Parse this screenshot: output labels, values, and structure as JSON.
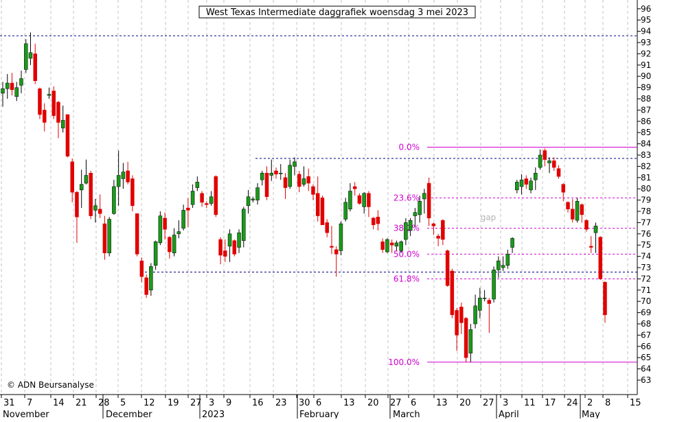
{
  "chart_data": {
    "type": "candlestick",
    "title": "West Texas Intermediate daggrafiek woensdag 3 mei 2023",
    "copyright": "© ADN Beursanalyse",
    "gap_label": "gap",
    "y_axis": {
      "min": 63,
      "max": 96,
      "step": 1,
      "position": "right"
    },
    "y_ticks": [
      63,
      64,
      65,
      66,
      67,
      68,
      69,
      70,
      71,
      72,
      73,
      74,
      75,
      76,
      77,
      78,
      79,
      80,
      81,
      82,
      83,
      84,
      85,
      86,
      87,
      88,
      89,
      90,
      91,
      92,
      93,
      94,
      95,
      96
    ],
    "x_day_ticks": [
      "31",
      "7",
      "14",
      "21",
      "28",
      "5",
      "12",
      "19",
      "27",
      "3",
      "9",
      "16",
      "23",
      "30",
      "6",
      "13",
      "20",
      "27",
      "6",
      "13",
      "20",
      "27",
      "3",
      "11",
      "17",
      "24",
      "2",
      "8",
      "15"
    ],
    "x_month_labels": [
      "November",
      "December",
      "2023",
      "February",
      "March",
      "April",
      "May"
    ],
    "grid": "vertical dashed",
    "colors": {
      "up": "#1a9a1a",
      "down": "#e00000",
      "fib": "#d000d0",
      "level": "#000080"
    },
    "horizontal_levels": [
      {
        "value": 93.6,
        "style": "dotted",
        "color": "#000080"
      },
      {
        "value": 82.7,
        "style": "dotted",
        "color": "#000080"
      },
      {
        "value": 72.6,
        "style": "dotted",
        "color": "#000080"
      }
    ],
    "fibonacci": [
      {
        "label": "0.0%",
        "value": 83.7
      },
      {
        "label": "23.6%",
        "value": 79.2
      },
      {
        "label": "38.2%",
        "value": 76.5
      },
      {
        "label": "50.0%",
        "value": 74.2
      },
      {
        "label": "61.8%",
        "value": 72.0
      },
      {
        "label": "100.0%",
        "value": 64.6
      }
    ],
    "candles": [
      {
        "o": 88.5,
        "h": 89.5,
        "l": 87.3,
        "c": 88.9
      },
      {
        "o": 88.9,
        "h": 90.2,
        "l": 88.0,
        "c": 89.4
      },
      {
        "o": 89.4,
        "h": 90.3,
        "l": 88.3,
        "c": 88.8
      },
      {
        "o": 88.2,
        "h": 89.5,
        "l": 87.8,
        "c": 89.0
      },
      {
        "o": 89.2,
        "h": 90.5,
        "l": 88.5,
        "c": 89.8
      },
      {
        "o": 90.6,
        "h": 93.3,
        "l": 90.3,
        "c": 92.9
      },
      {
        "o": 91.6,
        "h": 93.9,
        "l": 91.0,
        "c": 92.1
      },
      {
        "o": 92.0,
        "h": 92.9,
        "l": 89.3,
        "c": 89.6
      },
      {
        "o": 88.9,
        "h": 89.0,
        "l": 86.2,
        "c": 86.6
      },
      {
        "o": 87.0,
        "h": 87.6,
        "l": 85.1,
        "c": 85.9
      },
      {
        "o": 88.3,
        "h": 89.0,
        "l": 88.0,
        "c": 88.4
      },
      {
        "o": 88.7,
        "h": 89.1,
        "l": 86.2,
        "c": 86.5
      },
      {
        "o": 87.7,
        "h": 87.8,
        "l": 84.5,
        "c": 85.9
      },
      {
        "o": 85.4,
        "h": 87.4,
        "l": 85.0,
        "c": 86.1
      },
      {
        "o": 86.6,
        "h": 86.6,
        "l": 82.8,
        "c": 82.9
      },
      {
        "o": 82.4,
        "h": 82.7,
        "l": 78.8,
        "c": 79.7
      },
      {
        "o": 79.7,
        "h": 79.8,
        "l": 75.2,
        "c": 77.5
      },
      {
        "o": 79.9,
        "h": 81.7,
        "l": 78.3,
        "c": 80.4
      },
      {
        "o": 80.5,
        "h": 82.6,
        "l": 80.4,
        "c": 81.2
      },
      {
        "o": 81.4,
        "h": 81.6,
        "l": 77.3,
        "c": 77.6
      },
      {
        "o": 78.1,
        "h": 79.1,
        "l": 77.0,
        "c": 78.5
      },
      {
        "o": 78.2,
        "h": 79.5,
        "l": 77.4,
        "c": 77.8
      },
      {
        "o": 76.9,
        "h": 77.6,
        "l": 73.7,
        "c": 74.3
      },
      {
        "o": 74.3,
        "h": 77.5,
        "l": 74.0,
        "c": 77.3
      },
      {
        "o": 77.8,
        "h": 80.8,
        "l": 77.7,
        "c": 80.2
      },
      {
        "o": 80.2,
        "h": 83.4,
        "l": 78.5,
        "c": 81.2
      },
      {
        "o": 80.9,
        "h": 82.3,
        "l": 80.0,
        "c": 81.5
      },
      {
        "o": 81.6,
        "h": 82.4,
        "l": 80.4,
        "c": 80.6
      },
      {
        "o": 80.9,
        "h": 81.2,
        "l": 78.0,
        "c": 78.5
      },
      {
        "o": 77.8,
        "h": 77.8,
        "l": 74.0,
        "c": 74.2
      },
      {
        "o": 73.6,
        "h": 73.9,
        "l": 71.7,
        "c": 72.2
      },
      {
        "o": 72.1,
        "h": 72.4,
        "l": 70.3,
        "c": 70.6
      },
      {
        "o": 71.0,
        "h": 73.4,
        "l": 70.5,
        "c": 73.1
      },
      {
        "o": 73.2,
        "h": 75.4,
        "l": 72.8,
        "c": 75.3
      },
      {
        "o": 75.2,
        "h": 78.0,
        "l": 75.0,
        "c": 77.6
      },
      {
        "o": 77.4,
        "h": 77.9,
        "l": 75.5,
        "c": 76.4
      },
      {
        "o": 75.7,
        "h": 75.8,
        "l": 73.8,
        "c": 74.4
      },
      {
        "o": 74.3,
        "h": 76.5,
        "l": 74.0,
        "c": 75.9
      },
      {
        "o": 76.0,
        "h": 77.2,
        "l": 75.6,
        "c": 76.2
      },
      {
        "o": 76.5,
        "h": 78.6,
        "l": 76.3,
        "c": 78.1
      },
      {
        "o": 78.3,
        "h": 79.2,
        "l": 76.6,
        "c": 78.1
      },
      {
        "o": 78.6,
        "h": 80.4,
        "l": 78.3,
        "c": 79.8
      },
      {
        "o": 80.1,
        "h": 81.1,
        "l": 79.8,
        "c": 80.6
      },
      {
        "o": 79.6,
        "h": 79.8,
        "l": 78.4,
        "c": 78.8
      },
      {
        "o": 78.7,
        "h": 78.9,
        "l": 78.3,
        "c": 78.6
      },
      {
        "o": 78.7,
        "h": 79.8,
        "l": 78.5,
        "c": 79.3
      },
      {
        "o": 81.1,
        "h": 81.2,
        "l": 77.5,
        "c": 77.7
      },
      {
        "o": 75.5,
        "h": 75.7,
        "l": 73.3,
        "c": 74.1
      },
      {
        "o": 74.5,
        "h": 75.5,
        "l": 73.5,
        "c": 74.0
      },
      {
        "o": 74.9,
        "h": 76.4,
        "l": 73.5,
        "c": 76.0
      },
      {
        "o": 75.4,
        "h": 75.5,
        "l": 74.0,
        "c": 74.2
      },
      {
        "o": 74.8,
        "h": 76.4,
        "l": 74.3,
        "c": 76.1
      },
      {
        "o": 75.4,
        "h": 78.4,
        "l": 74.8,
        "c": 78.2
      },
      {
        "o": 78.5,
        "h": 79.9,
        "l": 77.8,
        "c": 79.3
      },
      {
        "o": 79.0,
        "h": 79.3,
        "l": 78.8,
        "c": 79.1
      },
      {
        "o": 79.0,
        "h": 80.5,
        "l": 78.6,
        "c": 80.1
      },
      {
        "o": 80.8,
        "h": 81.6,
        "l": 80.3,
        "c": 81.4
      },
      {
        "o": 81.4,
        "h": 82.0,
        "l": 79.0,
        "c": 79.3
      },
      {
        "o": 81.2,
        "h": 82.6,
        "l": 80.7,
        "c": 81.4
      },
      {
        "o": 81.6,
        "h": 81.9,
        "l": 80.9,
        "c": 81.3
      },
      {
        "o": 81.4,
        "h": 82.2,
        "l": 80.8,
        "c": 81.4
      },
      {
        "o": 81.0,
        "h": 81.4,
        "l": 79.1,
        "c": 80.1
      },
      {
        "o": 80.2,
        "h": 82.6,
        "l": 80.0,
        "c": 82.1
      },
      {
        "o": 82.0,
        "h": 82.8,
        "l": 81.2,
        "c": 82.4
      },
      {
        "o": 81.3,
        "h": 81.6,
        "l": 79.7,
        "c": 80.2
      },
      {
        "o": 80.4,
        "h": 82.0,
        "l": 80.2,
        "c": 80.9
      },
      {
        "o": 81.1,
        "h": 81.8,
        "l": 79.8,
        "c": 80.5
      },
      {
        "o": 80.2,
        "h": 80.4,
        "l": 79.0,
        "c": 79.5
      },
      {
        "o": 79.6,
        "h": 81.1,
        "l": 77.1,
        "c": 77.6
      },
      {
        "o": 79.2,
        "h": 79.4,
        "l": 76.8,
        "c": 76.8
      },
      {
        "o": 77.0,
        "h": 77.3,
        "l": 75.7,
        "c": 76.1
      },
      {
        "o": 74.9,
        "h": 76.7,
        "l": 74.2,
        "c": 74.8
      },
      {
        "o": 74.6,
        "h": 74.9,
        "l": 72.2,
        "c": 74.2
      },
      {
        "o": 74.5,
        "h": 77.1,
        "l": 74.1,
        "c": 76.9
      },
      {
        "o": 77.3,
        "h": 79.2,
        "l": 77.1,
        "c": 78.8
      },
      {
        "o": 78.2,
        "h": 80.5,
        "l": 78.0,
        "c": 79.8
      },
      {
        "o": 80.2,
        "h": 80.6,
        "l": 79.4,
        "c": 80.0
      },
      {
        "o": 79.4,
        "h": 79.6,
        "l": 78.6,
        "c": 78.7
      },
      {
        "o": 78.4,
        "h": 79.7,
        "l": 77.8,
        "c": 79.6
      },
      {
        "o": 79.6,
        "h": 79.8,
        "l": 77.5,
        "c": 78.4
      },
      {
        "o": 77.4,
        "h": 77.5,
        "l": 76.4,
        "c": 76.8
      },
      {
        "o": 77.5,
        "h": 78.1,
        "l": 76.3,
        "c": 76.9
      },
      {
        "o": 75.3,
        "h": 75.6,
        "l": 74.3,
        "c": 74.6
      },
      {
        "o": 74.4,
        "h": 75.6,
        "l": 74.3,
        "c": 75.5
      },
      {
        "o": 75.2,
        "h": 75.5,
        "l": 74.3,
        "c": 75.0
      },
      {
        "o": 74.9,
        "h": 75.4,
        "l": 74.5,
        "c": 75.2
      },
      {
        "o": 74.5,
        "h": 75.4,
        "l": 74.3,
        "c": 75.3
      },
      {
        "o": 75.5,
        "h": 77.4,
        "l": 75.0,
        "c": 77.0
      },
      {
        "o": 76.3,
        "h": 77.4,
        "l": 75.8,
        "c": 77.2
      },
      {
        "o": 77.6,
        "h": 78.3,
        "l": 76.6,
        "c": 77.9
      },
      {
        "o": 77.7,
        "h": 79.4,
        "l": 77.0,
        "c": 78.9
      },
      {
        "o": 79.1,
        "h": 80.0,
        "l": 77.8,
        "c": 79.6
      },
      {
        "o": 80.5,
        "h": 81.0,
        "l": 76.7,
        "c": 77.4
      },
      {
        "o": 76.9,
        "h": 77.0,
        "l": 75.9,
        "c": 76.7
      },
      {
        "o": 75.8,
        "h": 76.0,
        "l": 74.9,
        "c": 75.6
      },
      {
        "o": 77.2,
        "h": 77.3,
        "l": 75.0,
        "c": 75.5
      },
      {
        "o": 74.5,
        "h": 74.6,
        "l": 71.3,
        "c": 71.4
      },
      {
        "o": 72.7,
        "h": 72.9,
        "l": 68.5,
        "c": 68.8
      },
      {
        "o": 69.2,
        "h": 69.4,
        "l": 65.6,
        "c": 67.0
      },
      {
        "o": 69.5,
        "h": 69.9,
        "l": 67.1,
        "c": 68.1
      },
      {
        "o": 68.5,
        "h": 68.6,
        "l": 64.6,
        "c": 65.0
      },
      {
        "o": 65.4,
        "h": 68.0,
        "l": 64.6,
        "c": 67.5
      },
      {
        "o": 68.0,
        "h": 70.6,
        "l": 67.6,
        "c": 69.6
      },
      {
        "o": 69.2,
        "h": 71.2,
        "l": 68.5,
        "c": 70.3
      },
      {
        "o": 70.3,
        "h": 71.0,
        "l": 70.0,
        "c": 70.3
      },
      {
        "o": 70.1,
        "h": 70.3,
        "l": 67.2,
        "c": 69.8
      },
      {
        "o": 70.2,
        "h": 73.1,
        "l": 69.9,
        "c": 72.8
      },
      {
        "o": 72.8,
        "h": 74.0,
        "l": 72.1,
        "c": 73.6
      },
      {
        "o": 73.0,
        "h": 74.0,
        "l": 72.7,
        "c": 73.2
      },
      {
        "o": 73.2,
        "h": 74.6,
        "l": 72.9,
        "c": 74.2
      },
      {
        "o": 74.8,
        "h": 75.7,
        "l": 74.3,
        "c": 75.6
      },
      {
        "o": 79.9,
        "h": 80.8,
        "l": 79.6,
        "c": 80.6
      },
      {
        "o": 80.2,
        "h": 81.3,
        "l": 79.5,
        "c": 80.8
      },
      {
        "o": 80.9,
        "h": 81.2,
        "l": 80.0,
        "c": 80.4
      },
      {
        "o": 79.9,
        "h": 81.0,
        "l": 79.6,
        "c": 80.7
      },
      {
        "o": 80.8,
        "h": 81.9,
        "l": 79.9,
        "c": 81.4
      },
      {
        "o": 81.9,
        "h": 83.5,
        "l": 81.7,
        "c": 83.0
      },
      {
        "o": 83.4,
        "h": 83.6,
        "l": 82.0,
        "c": 82.6
      },
      {
        "o": 82.3,
        "h": 82.8,
        "l": 81.4,
        "c": 82.5
      },
      {
        "o": 82.5,
        "h": 82.8,
        "l": 81.6,
        "c": 81.9
      },
      {
        "o": 81.8,
        "h": 82.1,
        "l": 80.9,
        "c": 81.1
      },
      {
        "o": 80.4,
        "h": 80.5,
        "l": 78.9,
        "c": 79.7
      },
      {
        "o": 78.8,
        "h": 78.9,
        "l": 77.9,
        "c": 78.2
      },
      {
        "o": 78.2,
        "h": 79.1,
        "l": 77.0,
        "c": 77.3
      },
      {
        "o": 77.2,
        "h": 79.2,
        "l": 77.0,
        "c": 78.9
      },
      {
        "o": 78.6,
        "h": 78.7,
        "l": 77.0,
        "c": 77.7
      },
      {
        "o": 77.2,
        "h": 77.3,
        "l": 76.2,
        "c": 76.4
      },
      {
        "o": 74.9,
        "h": 75.8,
        "l": 74.3,
        "c": 74.8
      },
      {
        "o": 76.1,
        "h": 77.0,
        "l": 74.3,
        "c": 76.7
      },
      {
        "o": 75.7,
        "h": 75.8,
        "l": 71.9,
        "c": 72.0
      },
      {
        "o": 71.7,
        "h": 71.8,
        "l": 68.1,
        "c": 68.8
      }
    ]
  }
}
